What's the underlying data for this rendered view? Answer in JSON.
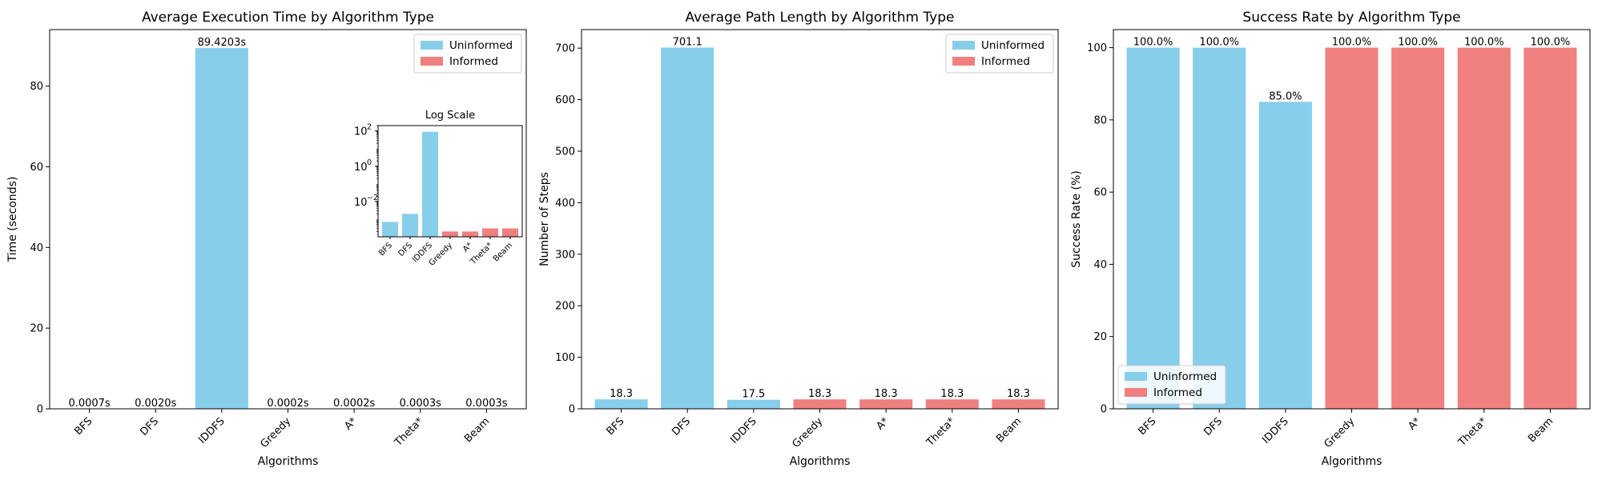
{
  "colors": {
    "uninformed": "#87CEEB",
    "informed": "#F08080"
  },
  "chart_data": [
    {
      "type": "bar",
      "title": "Average Execution Time by Algorithm Type",
      "xlabel": "Algorithms",
      "ylabel": "Time (seconds)",
      "ylim": [
        0,
        94
      ],
      "yticks": [
        0,
        20,
        40,
        60,
        80
      ],
      "legend_position": "top-right",
      "categories": [
        "BFS",
        "DFS",
        "IDDFS",
        "Greedy",
        "A*",
        "Theta*",
        "Beam"
      ],
      "groups": [
        "uninformed",
        "uninformed",
        "uninformed",
        "informed",
        "informed",
        "informed",
        "informed"
      ],
      "values": [
        0.0007,
        0.002,
        89.4203,
        0.0002,
        0.0002,
        0.0003,
        0.0003
      ],
      "data_labels": [
        "0.0007s",
        "0.0020s",
        "89.4203s",
        "0.0002s",
        "0.0002s",
        "0.0003s",
        "0.0003s"
      ],
      "legend": [
        "Uninformed",
        "Informed"
      ],
      "inset": {
        "title": "Log Scale",
        "scale": "log",
        "ylim": [
          0.0001,
          200
        ],
        "yticks": [
          0.01,
          1,
          100
        ],
        "ytick_labels": [
          {
            "base": "10",
            "exp": "−2"
          },
          {
            "base": "10",
            "exp": "0"
          },
          {
            "base": "10",
            "exp": "2"
          }
        ],
        "categories": [
          "BFS",
          "DFS",
          "IDDFS",
          "Greedy",
          "A*",
          "Theta*",
          "Beam"
        ]
      }
    },
    {
      "type": "bar",
      "title": "Average Path Length by Algorithm Type",
      "xlabel": "Algorithms",
      "ylabel": "Number of Steps",
      "ylim": [
        0,
        736
      ],
      "yticks": [
        0,
        100,
        200,
        300,
        400,
        500,
        600,
        700
      ],
      "legend_position": "top-right",
      "categories": [
        "BFS",
        "DFS",
        "IDDFS",
        "Greedy",
        "A*",
        "Theta*",
        "Beam"
      ],
      "groups": [
        "uninformed",
        "uninformed",
        "uninformed",
        "informed",
        "informed",
        "informed",
        "informed"
      ],
      "values": [
        18.3,
        701.1,
        17.5,
        18.3,
        18.3,
        18.3,
        18.3
      ],
      "data_labels": [
        "18.3",
        "701.1",
        "17.5",
        "18.3",
        "18.3",
        "18.3",
        "18.3"
      ],
      "legend": [
        "Uninformed",
        "Informed"
      ]
    },
    {
      "type": "bar",
      "title": "Success Rate by Algorithm Type",
      "xlabel": "Algorithms",
      "ylabel": "Success Rate (%)",
      "ylim": [
        0,
        105
      ],
      "yticks": [
        0,
        20,
        40,
        60,
        80,
        100
      ],
      "legend_position": "bottom-left",
      "categories": [
        "BFS",
        "DFS",
        "IDDFS",
        "Greedy",
        "A*",
        "Theta*",
        "Beam"
      ],
      "groups": [
        "uninformed",
        "uninformed",
        "uninformed",
        "informed",
        "informed",
        "informed",
        "informed"
      ],
      "values": [
        100.0,
        100.0,
        85.0,
        100.0,
        100.0,
        100.0,
        100.0
      ],
      "data_labels": [
        "100.0%",
        "100.0%",
        "85.0%",
        "100.0%",
        "100.0%",
        "100.0%",
        "100.0%"
      ],
      "legend": [
        "Uninformed",
        "Informed"
      ]
    }
  ]
}
